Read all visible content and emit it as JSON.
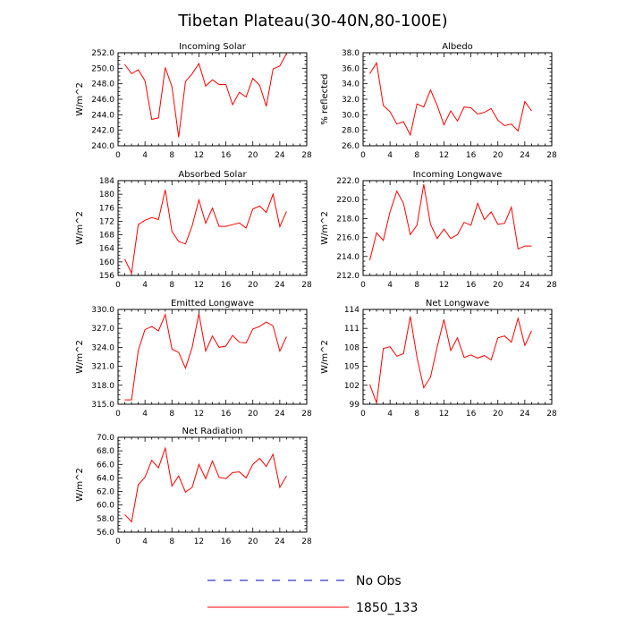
{
  "figure": {
    "title": "Tibetan Plateau(30-40N,80-100E)"
  },
  "colors": {
    "model": "#ff0000",
    "obs": "#0000cc"
  },
  "legend": {
    "entries": [
      {
        "label": "No Obs",
        "style": "dashed",
        "color": "#0000cc"
      },
      {
        "label": "1850_133",
        "style": "solid",
        "color": "#ff0000"
      }
    ]
  },
  "chart_data": [
    {
      "type": "line",
      "title": "Incoming Solar",
      "ylabel": "W/m^2",
      "xlim": [
        0,
        28
      ],
      "ylim": [
        240,
        252
      ],
      "xticks": [
        "0",
        "4",
        "8",
        "12",
        "16",
        "20",
        "24",
        "28"
      ],
      "yticks": [
        "240.0",
        "242.0",
        "244.0",
        "246.0",
        "248.0",
        "250.0",
        "252.0"
      ],
      "series": [
        {
          "name": "1850_133",
          "x": [
            1,
            2,
            3,
            4,
            5,
            6,
            7,
            8,
            9,
            10,
            11,
            12,
            13,
            14,
            15,
            16,
            17,
            18,
            19,
            20,
            21,
            22,
            23,
            24,
            25
          ],
          "values": [
            250.5,
            249.3,
            249.8,
            248.4,
            243.4,
            243.6,
            250.1,
            247.6,
            241.1,
            248.3,
            249.3,
            250.6,
            247.7,
            248.5,
            247.9,
            247.9,
            245.3,
            246.9,
            246.3,
            248.7,
            247.8,
            245.1,
            249.9,
            250.3,
            251.9
          ]
        }
      ]
    },
    {
      "type": "line",
      "title": "Albedo",
      "ylabel": "% reflected",
      "xlim": [
        0,
        28
      ],
      "ylim": [
        26,
        38
      ],
      "xticks": [
        "0",
        "4",
        "8",
        "12",
        "16",
        "20",
        "24",
        "28"
      ],
      "yticks": [
        "26.0",
        "28.0",
        "30.0",
        "32.0",
        "34.0",
        "36.0",
        "38.0"
      ],
      "series": [
        {
          "name": "1850_133",
          "x": [
            1,
            2,
            3,
            4,
            5,
            6,
            7,
            8,
            9,
            10,
            11,
            12,
            13,
            14,
            15,
            16,
            17,
            18,
            19,
            20,
            21,
            22,
            23,
            24,
            25
          ],
          "values": [
            35.3,
            36.7,
            31.2,
            30.4,
            28.8,
            29.1,
            27.4,
            31.4,
            31.0,
            33.2,
            31.2,
            28.7,
            30.5,
            29.2,
            31.0,
            30.9,
            30.1,
            30.3,
            30.8,
            29.3,
            28.6,
            28.8,
            27.9,
            31.7,
            30.5
          ]
        }
      ]
    },
    {
      "type": "line",
      "title": "Absorbed Solar",
      "ylabel": "W/m^2",
      "xlim": [
        0,
        28
      ],
      "ylim": [
        156,
        184
      ],
      "xticks": [
        "0",
        "4",
        "8",
        "12",
        "16",
        "20",
        "24",
        "28"
      ],
      "yticks": [
        "156",
        "160",
        "164",
        "168",
        "172",
        "176",
        "180",
        "184"
      ],
      "series": [
        {
          "name": "1850_133",
          "x": [
            1,
            2,
            3,
            4,
            5,
            6,
            7,
            8,
            9,
            10,
            11,
            12,
            13,
            14,
            15,
            16,
            17,
            18,
            19,
            20,
            21,
            22,
            23,
            24,
            25
          ],
          "values": [
            160.8,
            156.7,
            171.0,
            172.3,
            173.1,
            172.5,
            181.3,
            169.0,
            166.0,
            165.3,
            170.7,
            178.3,
            171.4,
            175.9,
            170.5,
            170.5,
            171.0,
            171.5,
            170.0,
            175.6,
            176.5,
            174.6,
            180.0,
            170.4,
            174.9
          ]
        }
      ]
    },
    {
      "type": "line",
      "title": "Incoming Longwave",
      "ylabel": "W/m^2",
      "xlim": [
        0,
        28
      ],
      "ylim": [
        212,
        222
      ],
      "xticks": [
        "0",
        "4",
        "8",
        "12",
        "16",
        "20",
        "24",
        "28"
      ],
      "yticks": [
        "212.0",
        "214.0",
        "216.0",
        "218.0",
        "220.0",
        "222.0"
      ],
      "series": [
        {
          "name": "1850_133",
          "x": [
            1,
            2,
            3,
            4,
            5,
            6,
            7,
            8,
            9,
            10,
            11,
            12,
            13,
            14,
            15,
            16,
            17,
            18,
            19,
            20,
            21,
            22,
            23,
            24,
            25
          ],
          "values": [
            213.6,
            216.5,
            215.7,
            218.7,
            220.9,
            219.6,
            216.3,
            217.3,
            221.6,
            217.4,
            215.9,
            216.9,
            215.9,
            216.3,
            217.6,
            217.3,
            219.6,
            217.9,
            218.7,
            217.4,
            217.5,
            219.2,
            214.8,
            215.1,
            215.1
          ]
        }
      ]
    },
    {
      "type": "line",
      "title": "Emitted Longwave",
      "ylabel": "W/m^2",
      "xlim": [
        0,
        28
      ],
      "ylim": [
        315,
        330
      ],
      "xticks": [
        "0",
        "4",
        "8",
        "12",
        "16",
        "20",
        "24",
        "28"
      ],
      "yticks": [
        "315.0",
        "318.0",
        "321.0",
        "324.0",
        "327.0",
        "330.0"
      ],
      "series": [
        {
          "name": "1850_133",
          "x": [
            1,
            2,
            3,
            4,
            5,
            6,
            7,
            8,
            9,
            10,
            11,
            12,
            13,
            14,
            15,
            16,
            17,
            18,
            19,
            20,
            21,
            22,
            23,
            24,
            25
          ],
          "values": [
            315.7,
            315.7,
            323.5,
            326.8,
            327.3,
            326.6,
            329.2,
            323.7,
            323.2,
            320.7,
            324.0,
            329.3,
            323.4,
            325.8,
            324.0,
            324.2,
            325.9,
            324.8,
            324.7,
            326.9,
            327.3,
            328.0,
            327.4,
            323.4,
            325.7
          ]
        }
      ]
    },
    {
      "type": "line",
      "title": "Net Longwave",
      "ylabel": "W/m^2",
      "xlim": [
        0,
        28
      ],
      "ylim": [
        99,
        114
      ],
      "xticks": [
        "0",
        "4",
        "8",
        "12",
        "16",
        "20",
        "24",
        "28"
      ],
      "yticks": [
        "99",
        "102",
        "105",
        "108",
        "111",
        "114"
      ],
      "series": [
        {
          "name": "1850_133",
          "x": [
            1,
            2,
            3,
            4,
            5,
            6,
            7,
            8,
            9,
            10,
            11,
            12,
            13,
            14,
            15,
            16,
            17,
            18,
            19,
            20,
            21,
            22,
            23,
            24,
            25
          ],
          "values": [
            102.1,
            99.2,
            107.8,
            108.1,
            106.6,
            107.0,
            112.9,
            106.4,
            101.6,
            103.3,
            108.1,
            112.4,
            107.5,
            109.5,
            106.4,
            106.8,
            106.3,
            106.7,
            106.0,
            109.5,
            109.8,
            108.8,
            112.6,
            108.3,
            110.6
          ]
        }
      ]
    },
    {
      "type": "line",
      "title": "Net Radiation",
      "ylabel": "W/m^2",
      "xlim": [
        0,
        28
      ],
      "ylim": [
        56,
        70
      ],
      "xticks": [
        "0",
        "4",
        "8",
        "12",
        "16",
        "20",
        "24",
        "28"
      ],
      "yticks": [
        "56.0",
        "58.0",
        "60.0",
        "62.0",
        "64.0",
        "66.0",
        "68.0",
        "70.0"
      ],
      "series": [
        {
          "name": "1850_133",
          "x": [
            1,
            2,
            3,
            4,
            5,
            6,
            7,
            8,
            9,
            10,
            11,
            12,
            13,
            14,
            15,
            16,
            17,
            18,
            19,
            20,
            21,
            22,
            23,
            24,
            25
          ],
          "values": [
            58.6,
            57.5,
            63.0,
            64.1,
            66.6,
            65.5,
            68.4,
            62.8,
            64.3,
            61.9,
            62.6,
            66.0,
            63.9,
            66.5,
            64.1,
            63.9,
            64.8,
            64.9,
            64.0,
            66.0,
            66.9,
            65.7,
            67.5,
            62.6,
            64.3
          ]
        }
      ]
    }
  ]
}
